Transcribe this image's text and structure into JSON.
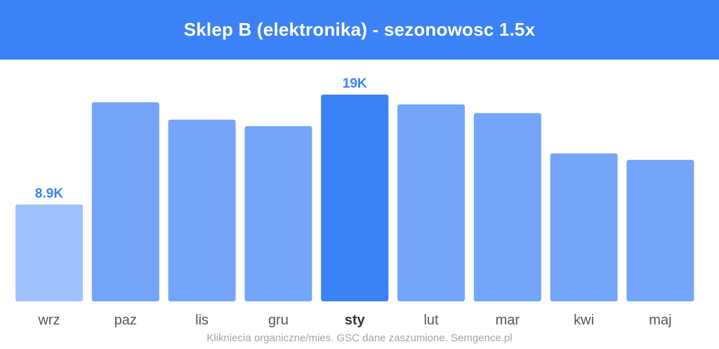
{
  "title": "Sklep B (elektronika) - sezonowosc 1.5x",
  "footnote": "Klikniecia organiczne/mies. GSC dane zaszumione. Semgence.pl",
  "colors": {
    "header_bg": "#3b82f6",
    "bar_default": "#74a5f9",
    "bar_low": "#9ec1fb",
    "bar_peak": "#3b82f6",
    "label_blue": "#3b82f6"
  },
  "chart_data": {
    "type": "bar",
    "categories": [
      "wrz",
      "paz",
      "lis",
      "gru",
      "sty",
      "lut",
      "mar",
      "kwi",
      "maj"
    ],
    "values": [
      8.9,
      18.3,
      16.7,
      16.1,
      19.0,
      18.1,
      17.3,
      13.6,
      13.0
    ],
    "unit": "K",
    "data_labels": [
      {
        "category": "wrz",
        "text": "8.9K"
      },
      {
        "category": "sty",
        "text": "19K"
      }
    ],
    "min_category": "wrz",
    "peak_category": "sty",
    "ylim": [
      0,
      19
    ],
    "grid": false,
    "legend": "none"
  }
}
